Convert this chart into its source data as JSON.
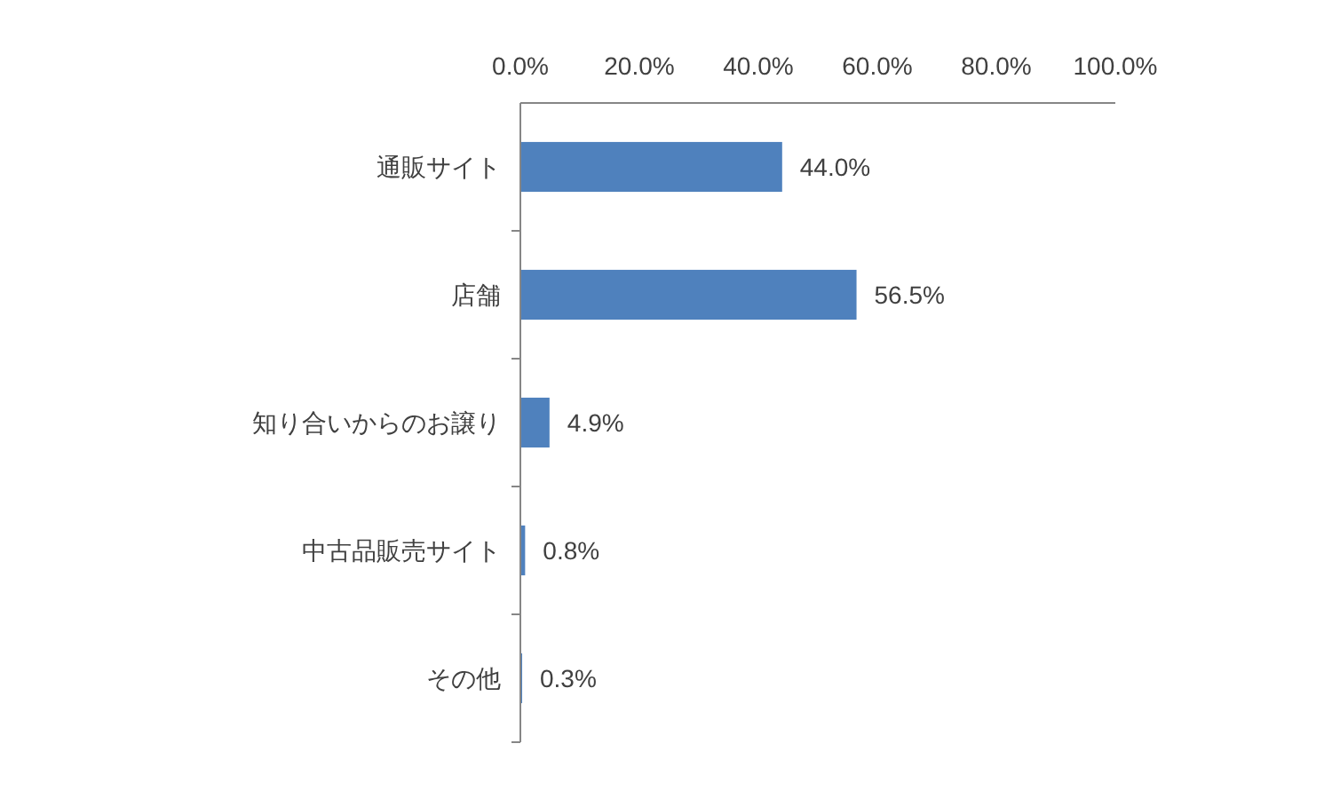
{
  "chart_data": {
    "type": "bar",
    "orientation": "horizontal",
    "categories": [
      "通販サイト",
      "店舗",
      "知り合いからのお譲り",
      "中古品販売サイト",
      "その他"
    ],
    "values": [
      44.0,
      56.5,
      4.9,
      0.8,
      0.3
    ],
    "value_labels": [
      "44.0%",
      "56.5%",
      "4.9%",
      "0.8%",
      "0.3%"
    ],
    "color": "#4f81bd",
    "xlim": [
      0,
      100
    ],
    "xticks": [
      {
        "value": 0,
        "label": "0.0%"
      },
      {
        "value": 20,
        "label": "20.0%"
      },
      {
        "value": 40,
        "label": "40.0%"
      },
      {
        "value": 60,
        "label": "60.0%"
      },
      {
        "value": 80,
        "label": "80.0%"
      },
      {
        "value": 100,
        "label": "100.0%"
      }
    ]
  }
}
